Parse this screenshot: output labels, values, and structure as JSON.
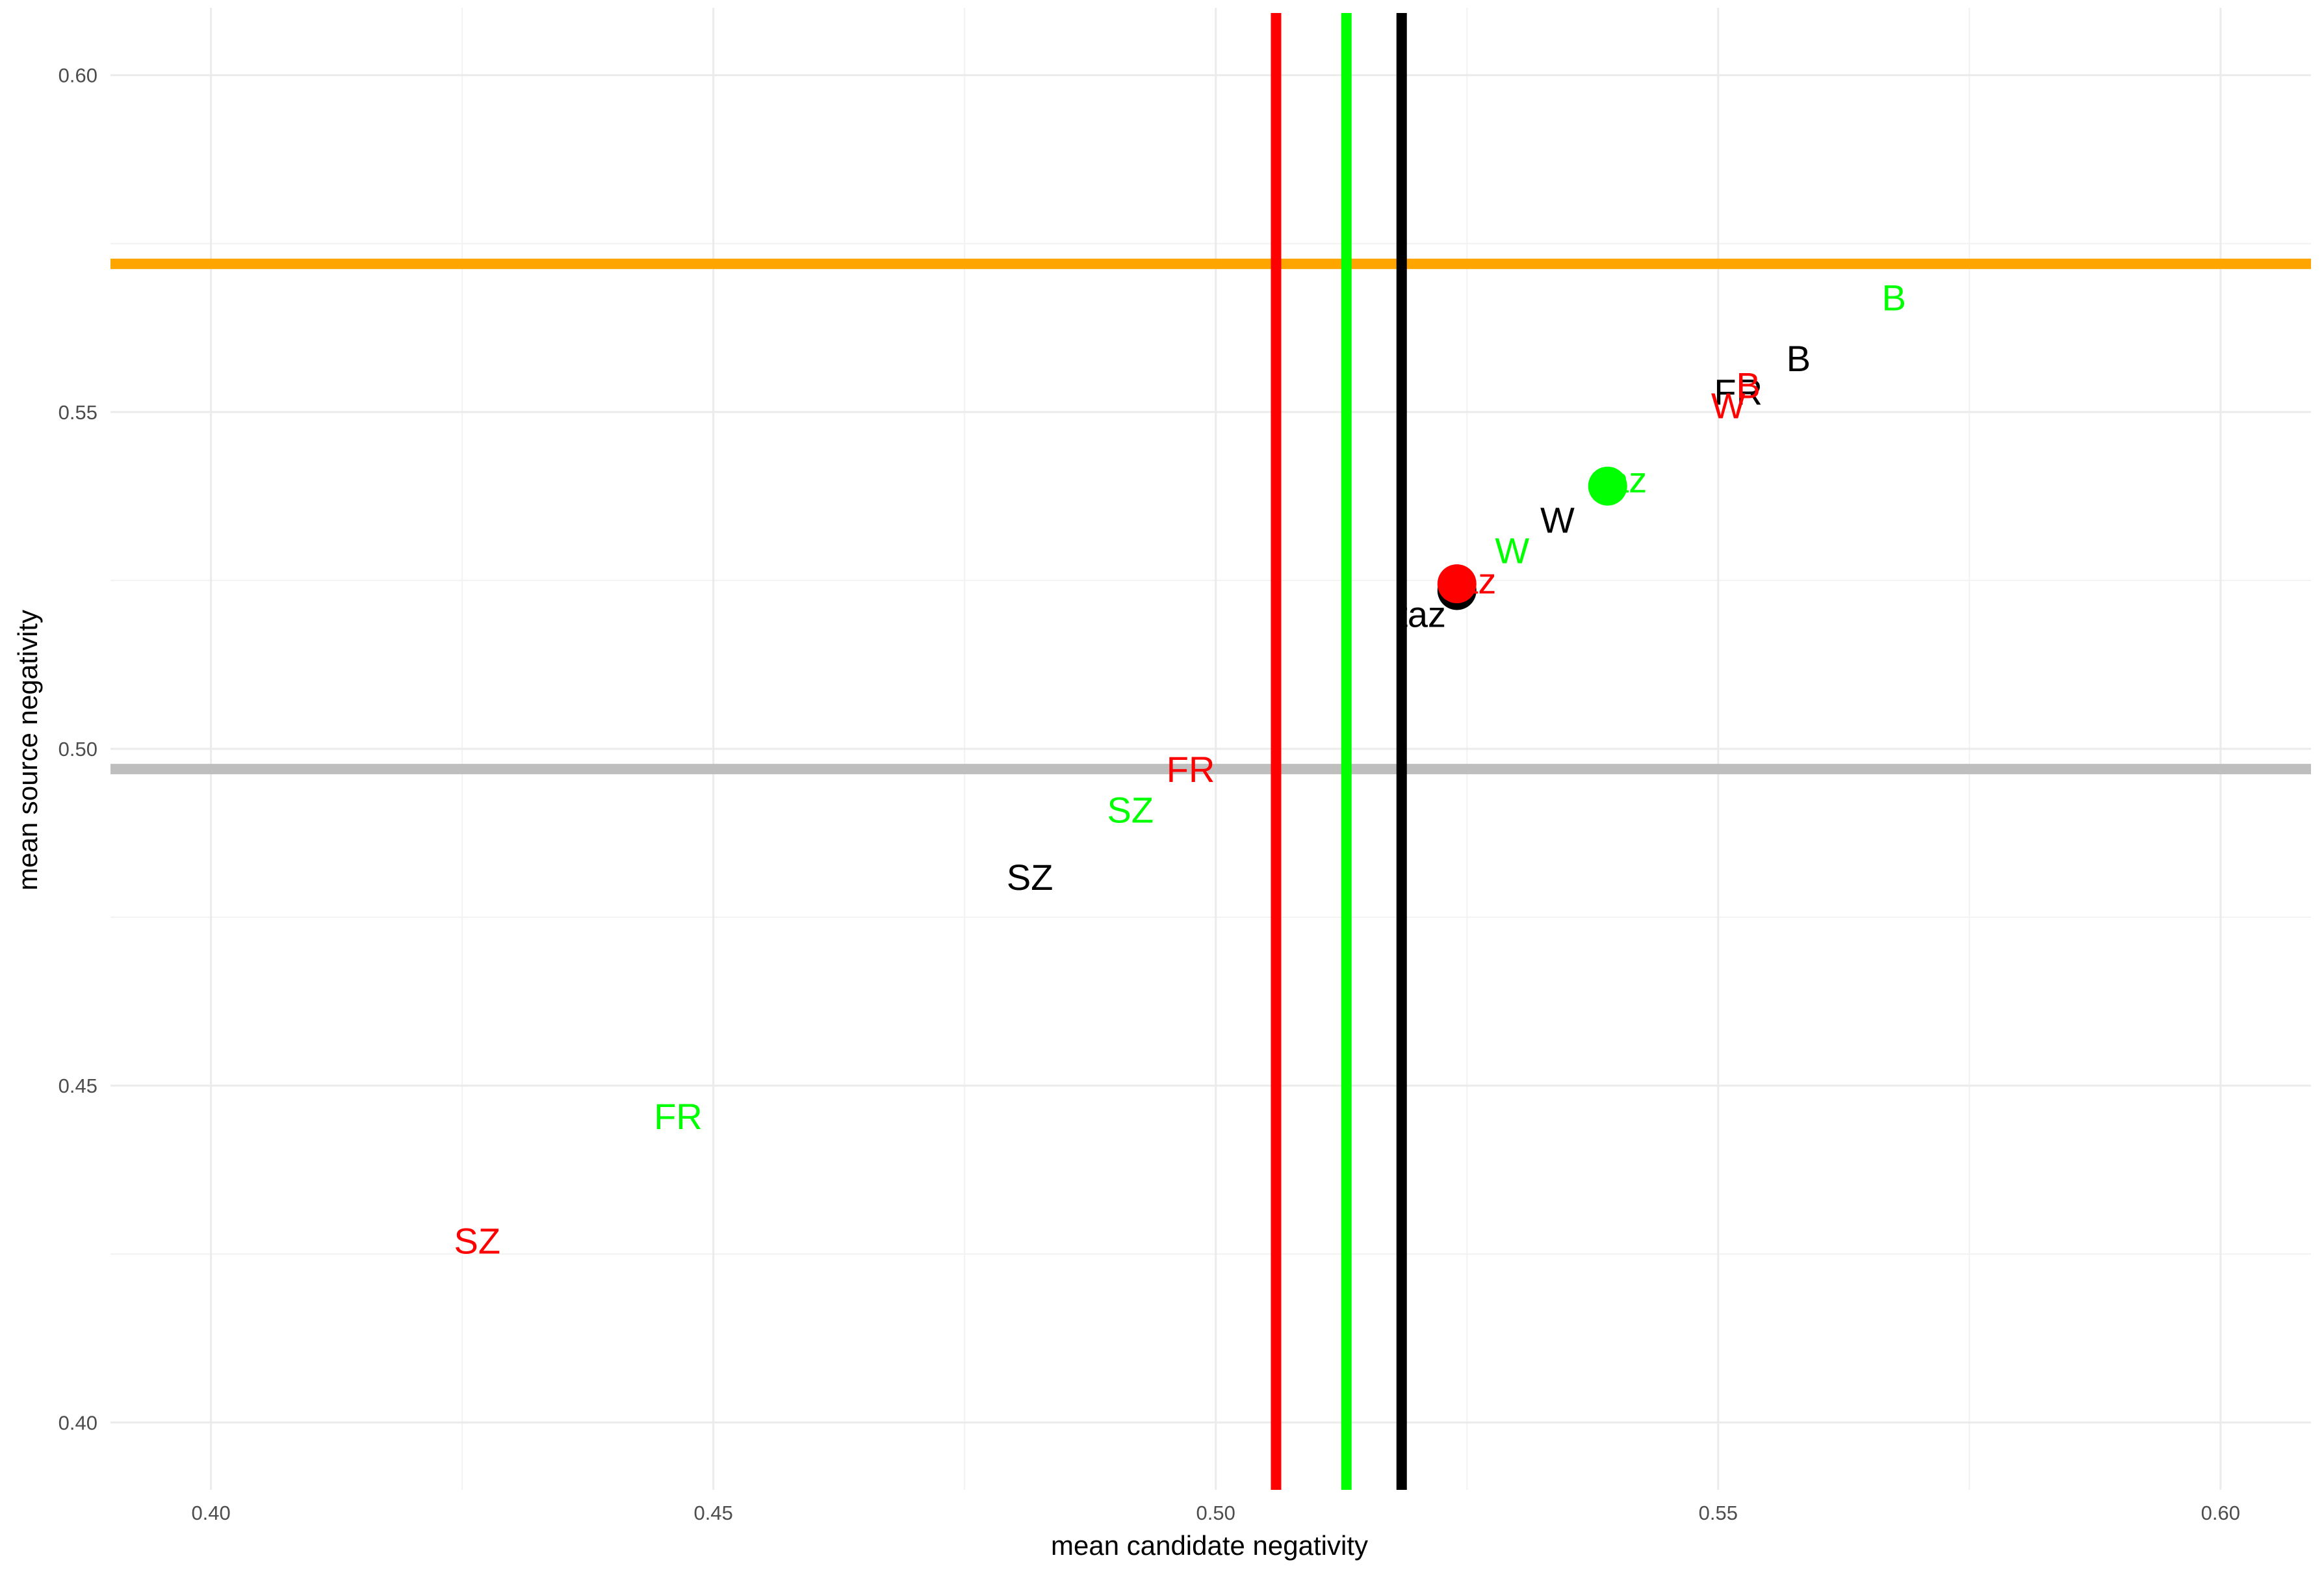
{
  "chart_data": {
    "type": "scatter",
    "title": "",
    "xlabel": "mean candidate negativity",
    "ylabel": "mean source negativity",
    "xlim": [
      0.39,
      0.609
    ],
    "ylim": [
      0.39,
      0.61
    ],
    "grid": true,
    "x_ticks": [
      {
        "value": 0.4,
        "label": "0.40"
      },
      {
        "value": 0.45,
        "label": "0.45"
      },
      {
        "value": 0.5,
        "label": "0.50"
      },
      {
        "value": 0.55,
        "label": "0.55"
      },
      {
        "value": 0.6,
        "label": "0.60"
      }
    ],
    "y_ticks": [
      {
        "value": 0.4,
        "label": "0.40"
      },
      {
        "value": 0.45,
        "label": "0.45"
      },
      {
        "value": 0.5,
        "label": "0.50"
      },
      {
        "value": 0.55,
        "label": "0.55"
      },
      {
        "value": 0.6,
        "label": "0.60"
      }
    ],
    "reference_lines": [
      {
        "orientation": "horizontal",
        "value": 0.572,
        "color": "#FFA500"
      },
      {
        "orientation": "horizontal",
        "value": 0.497,
        "color": "#BEBEBE"
      },
      {
        "orientation": "vertical",
        "value": 0.506,
        "color": "#FF0000"
      },
      {
        "orientation": "vertical",
        "value": 0.513,
        "color": "#00FF00"
      },
      {
        "orientation": "vertical",
        "value": 0.5185,
        "color": "#000000"
      }
    ],
    "series": [
      {
        "color": "#000000",
        "labels": [
          {
            "text": "B",
            "x": 0.558,
            "y": 0.558
          },
          {
            "text": "FR",
            "x": 0.552,
            "y": 0.553
          },
          {
            "text": "W",
            "x": 0.534,
            "y": 0.534
          },
          {
            "text": "taz",
            "x": 0.5205,
            "y": 0.52
          },
          {
            "text": "SZ",
            "x": 0.4815,
            "y": 0.481
          }
        ],
        "mean_point": {
          "x": 0.524,
          "y": 0.5235
        }
      },
      {
        "color": "#FF0000",
        "labels": [
          {
            "text": "B",
            "x": 0.553,
            "y": 0.554
          },
          {
            "text": "W",
            "x": 0.551,
            "y": 0.551
          },
          {
            "text": "taz",
            "x": 0.5255,
            "y": 0.525
          },
          {
            "text": "FR",
            "x": 0.4975,
            "y": 0.497
          },
          {
            "text": "SZ",
            "x": 0.4265,
            "y": 0.427
          }
        ],
        "mean_point": {
          "x": 0.524,
          "y": 0.5245
        }
      },
      {
        "color": "#00FF00",
        "labels": [
          {
            "text": "B",
            "x": 0.5675,
            "y": 0.567
          },
          {
            "text": "taz",
            "x": 0.5405,
            "y": 0.54
          },
          {
            "text": "W",
            "x": 0.5295,
            "y": 0.5295
          },
          {
            "text": "SZ",
            "x": 0.4915,
            "y": 0.491
          },
          {
            "text": "FR",
            "x": 0.4465,
            "y": 0.4455
          }
        ],
        "mean_point": {
          "x": 0.539,
          "y": 0.539
        }
      }
    ]
  }
}
